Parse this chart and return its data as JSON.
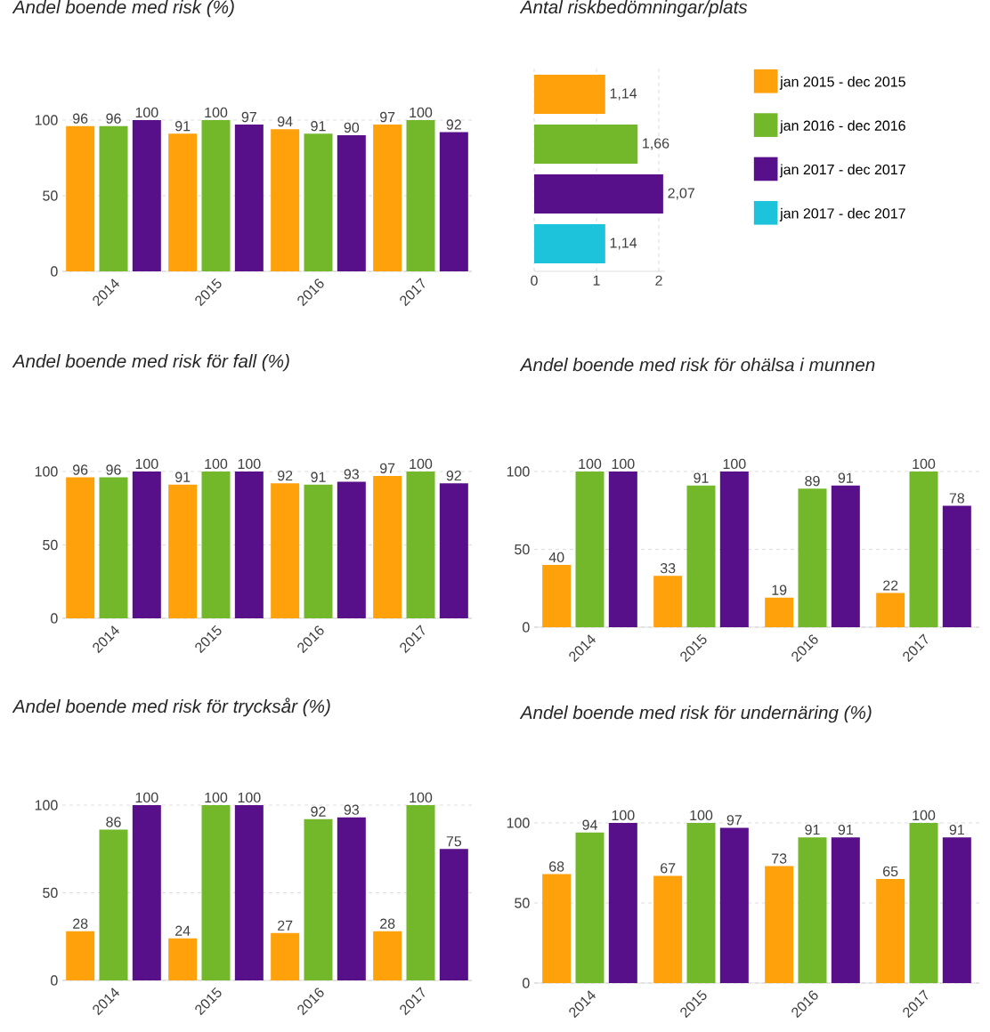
{
  "chart_data": [
    {
      "type": "bar",
      "title": "Andel boende med risk (%)",
      "categories": [
        "2014",
        "2015",
        "2016",
        "2017"
      ],
      "series": [
        {
          "color": "#ffa10a",
          "values": [
            96,
            91,
            94,
            97
          ]
        },
        {
          "color": "#72b82a",
          "values": [
            96,
            100,
            91,
            100
          ]
        },
        {
          "color": "#58108a",
          "values": [
            100,
            97,
            90,
            92
          ]
        }
      ],
      "ylim": [
        0,
        100
      ],
      "yticks": [
        0,
        50,
        100
      ],
      "grid": "y",
      "data_labels": true
    },
    {
      "type": "bar",
      "orientation": "horizontal",
      "title": "Antal riskbedömningar/plats",
      "categories": [
        null
      ],
      "series": [
        {
          "name": "jan 2015 - dec 2015",
          "color": "#ffa10a",
          "values": [
            1.14
          ],
          "value_labels": [
            "1,14"
          ]
        },
        {
          "name": "jan 2016 - dec 2016",
          "color": "#72b82a",
          "values": [
            1.66
          ],
          "value_labels": [
            "1,66"
          ]
        },
        {
          "name": "jan 2017 - dec 2017",
          "color": "#58108a",
          "values": [
            2.07
          ],
          "value_labels": [
            "2,07"
          ]
        },
        {
          "name": "jan 2017 - dec 2017",
          "color": "#1cc3da",
          "values": [
            1.14
          ],
          "value_labels": [
            "1,14"
          ]
        }
      ],
      "xlim": [
        0,
        2.1
      ],
      "xticks": [
        0,
        1,
        2
      ],
      "grid": "x",
      "legend": "right"
    },
    {
      "type": "bar",
      "title": "Andel boende med risk för fall (%)",
      "categories": [
        "2014",
        "2015",
        "2016",
        "2017"
      ],
      "series": [
        {
          "color": "#ffa10a",
          "values": [
            96,
            91,
            92,
            97
          ]
        },
        {
          "color": "#72b82a",
          "values": [
            96,
            100,
            91,
            100
          ]
        },
        {
          "color": "#58108a",
          "values": [
            100,
            100,
            93,
            92
          ]
        }
      ],
      "ylim": [
        0,
        100
      ],
      "yticks": [
        0,
        50,
        100
      ],
      "grid": "y",
      "data_labels": true
    },
    {
      "type": "bar",
      "title": "Andel boende med risk för ohälsa i munnen",
      "categories": [
        "2014",
        "2015",
        "2016",
        "2017"
      ],
      "series": [
        {
          "color": "#ffa10a",
          "values": [
            40,
            33,
            19,
            22
          ]
        },
        {
          "color": "#72b82a",
          "values": [
            100,
            91,
            89,
            100
          ]
        },
        {
          "color": "#58108a",
          "values": [
            100,
            100,
            91,
            78
          ]
        }
      ],
      "ylim": [
        0,
        100
      ],
      "yticks": [
        0,
        50,
        100
      ],
      "grid": "y",
      "data_labels": true
    },
    {
      "type": "bar",
      "title": "Andel boende med risk för trycksår (%)",
      "categories": [
        "2014",
        "2015",
        "2016",
        "2017"
      ],
      "series": [
        {
          "color": "#ffa10a",
          "values": [
            28,
            24,
            27,
            28
          ]
        },
        {
          "color": "#72b82a",
          "values": [
            86,
            100,
            92,
            100
          ]
        },
        {
          "color": "#58108a",
          "values": [
            100,
            100,
            93,
            75
          ]
        }
      ],
      "ylim": [
        0,
        100
      ],
      "yticks": [
        0,
        50,
        100
      ],
      "grid": "y",
      "data_labels": true
    },
    {
      "type": "bar",
      "title": "Andel boende med risk för undernäring (%)",
      "categories": [
        "2014",
        "2015",
        "2016",
        "2017"
      ],
      "series": [
        {
          "color": "#ffa10a",
          "values": [
            68,
            67,
            73,
            65
          ]
        },
        {
          "color": "#72b82a",
          "values": [
            94,
            100,
            91,
            100
          ]
        },
        {
          "color": "#58108a",
          "values": [
            100,
            97,
            91,
            91
          ]
        }
      ],
      "ylim": [
        0,
        100
      ],
      "yticks": [
        0,
        50,
        100
      ],
      "grid": "y",
      "data_labels": true
    }
  ]
}
